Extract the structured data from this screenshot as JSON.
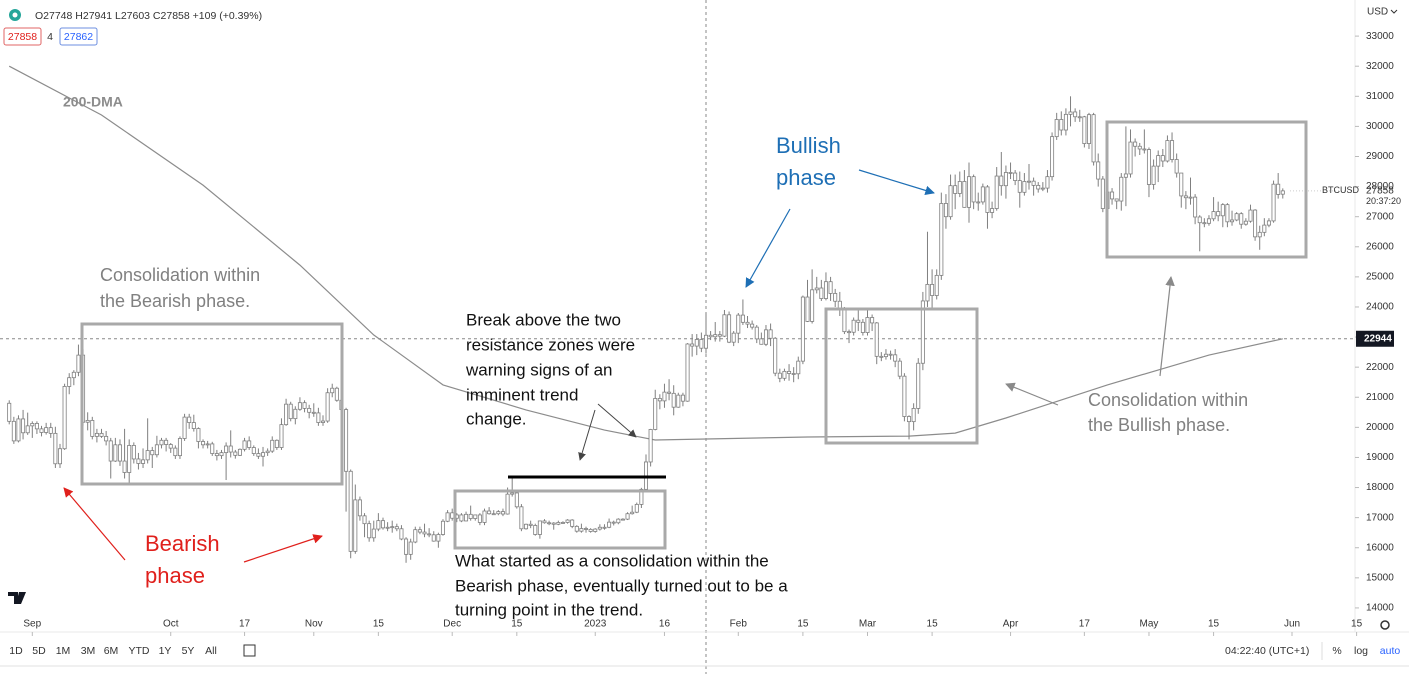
{
  "chart_data": {
    "type": "candlestick",
    "symbol": "BTCUSD",
    "currency": "USD",
    "legend_text": "O27748 H27941 L27603 C27858 +109 (+0.39%)",
    "bid": "27858",
    "spread": "4",
    "ask": "27862",
    "last_price": 27858,
    "countdown": "20:37:20",
    "crosshair_price": 22944,
    "candle_fill": "#ffffff",
    "candle_stroke": "#7f7f7f",
    "ylim": [
      13200,
      34200
    ],
    "yticks": [
      14000,
      15000,
      16000,
      17000,
      18000,
      19000,
      20000,
      21000,
      22000,
      23000,
      24000,
      25000,
      26000,
      27000,
      28000,
      29000,
      30000,
      31000,
      32000,
      33000
    ],
    "xlim": [
      -2,
      291
    ],
    "xticks": [
      {
        "value": 5,
        "label": "Sep"
      },
      {
        "value": 35,
        "label": "Oct"
      },
      {
        "value": 51,
        "label": "17"
      },
      {
        "value": 66,
        "label": "Nov"
      },
      {
        "value": 80,
        "label": "15"
      },
      {
        "value": 96,
        "label": "Dec"
      },
      {
        "value": 110,
        "label": "15"
      },
      {
        "value": 127,
        "label": "2023"
      },
      {
        "value": 142,
        "label": "16"
      },
      {
        "value": 158,
        "label": "Feb"
      },
      {
        "value": 172,
        "label": "15"
      },
      {
        "value": 186,
        "label": "Mar"
      },
      {
        "value": 200,
        "label": "15"
      },
      {
        "value": 217,
        "label": "Apr"
      },
      {
        "value": 233,
        "label": "17"
      },
      {
        "value": 247,
        "label": "May"
      },
      {
        "value": 261,
        "label": "15"
      },
      {
        "value": 278,
        "label": "Jun"
      },
      {
        "value": 292,
        "label": "15"
      }
    ],
    "grid": false,
    "open": [
      20800,
      20200,
      19550,
      20280,
      19820,
      20050,
      20130,
      19950,
      19830,
      19990,
      19800,
      18790,
      19290,
      21360,
      21650,
      21830,
      22400,
      20170,
      20230,
      19700,
      19800,
      19700,
      19550,
      18880,
      19420,
      18880,
      18500,
      19400,
      18950,
      18800,
      18920,
      19230,
      19090,
      19420,
      19570,
      19430,
      19310,
      19060,
      19630,
      20340,
      20160,
      19960,
      19530,
      19420,
      19450,
      19130,
      19060,
      19160,
      19380,
      19180,
      19070,
      19270,
      19550,
      19330,
      19130,
      19040,
      19160,
      19210,
      19570,
      19330,
      20090,
      20770,
      20290,
      20600,
      20820,
      20630,
      20500,
      20480,
      20160,
      20210,
      21150,
      21300,
      20900,
      20590,
      18540,
      15880,
      17590,
      17060,
      16800,
      16330,
      16620,
      16900,
      16660,
      16680,
      16700,
      16630,
      16290,
      15780,
      16190,
      16600,
      16520,
      16460,
      16430,
      16220,
      16440,
      16880,
      17160,
      16980,
      17090,
      16890,
      17110,
      16970,
      17090,
      16840,
      17220,
      17130,
      17130,
      17200,
      17120,
      17780,
      17820,
      17360,
      16630,
      16780,
      16740,
      16440,
      16890,
      16830,
      16820,
      16780,
      16840,
      16840,
      16920,
      16710,
      16550,
      16640,
      16610,
      16540,
      16620,
      16680,
      16680,
      16850,
      16830,
      16950,
      16950,
      17130,
      17180,
      17440,
      17940,
      18850,
      19930,
      20960,
      20880,
      21170,
      21130,
      20670,
      21070,
      20870,
      22770,
      22700,
      22920,
      22630,
      23060,
      23010,
      23080,
      23030,
      23740,
      22830,
      23130,
      23730,
      23490,
      23430,
      23330,
      22940,
      22760,
      23240,
      22960,
      21800,
      21630,
      21860,
      21790,
      21780,
      22200,
      24330,
      23520,
      24570,
      24630,
      24280,
      24840,
      24450,
      24190,
      23950,
      23180,
      23160,
      23560,
      23490,
      23150,
      23650,
      23470,
      22360,
      22350,
      22430,
      22410,
      22200,
      21700,
      20360,
      20190,
      20630,
      22130,
      24200,
      24750,
      24380,
      25050,
      27440,
      27000,
      28030,
      27770,
      28170,
      27310,
      28330,
      27490,
      27490,
      27990,
      27140,
      27270,
      28350,
      28030,
      28470,
      28450,
      28200,
      27810,
      28170,
      28180,
      28040,
      27920,
      27950,
      28330,
      29660,
      30230,
      29880,
      30400,
      30480,
      30320,
      30320,
      29430,
      30390,
      28820,
      28250,
      27270,
      27820,
      27590,
      27520,
      28310,
      28420,
      29480,
      29340,
      29250,
      29230,
      28070,
      28680,
      29030,
      28850,
      29530,
      28900,
      28450,
      27690,
      27630,
      27650,
      26990,
      26800,
      26780,
      26930,
      27170,
      27030,
      27400,
      26830,
      26890,
      27100,
      26750,
      26850,
      27220,
      26330,
      26480,
      26720,
      26860,
      28080,
      27748
    ],
    "high": [
      20900,
      20350,
      20400,
      20580,
      20490,
      20200,
      20200,
      20050,
      20150,
      20150,
      20020,
      19450,
      21450,
      21800,
      21900,
      22750,
      22600,
      20500,
      20350,
      19950,
      19950,
      19880,
      19650,
      19650,
      19600,
      19950,
      19600,
      19500,
      19150,
      19300,
      20300,
      19350,
      19720,
      19650,
      19650,
      19480,
      19400,
      19700,
      20450,
      20450,
      20420,
      20000,
      19600,
      19550,
      19520,
      19250,
      19250,
      19500,
      19900,
      19250,
      19300,
      19650,
      19700,
      19400,
      19300,
      19350,
      19300,
      19700,
      19600,
      20300,
      20950,
      20850,
      20700,
      21000,
      20900,
      20750,
      20800,
      20650,
      20400,
      21300,
      21450,
      21350,
      21000,
      20650,
      18600,
      18100,
      17700,
      17150,
      16900,
      16900,
      17150,
      17000,
      16850,
      16900,
      16800,
      16750,
      16350,
      16300,
      16700,
      16700,
      16800,
      16650,
      16550,
      16500,
      16950,
      17250,
      17300,
      17150,
      17150,
      17200,
      17400,
      17100,
      17150,
      17300,
      17350,
      17250,
      17250,
      17300,
      18000,
      18350,
      17850,
      17450,
      16800,
      16900,
      16800,
      16900,
      16950,
      16900,
      16850,
      16900,
      16880,
      16950,
      16950,
      16750,
      16800,
      16700,
      16650,
      16650,
      16780,
      16780,
      16970,
      16900,
      16980,
      16980,
      17180,
      17400,
      17500,
      17990,
      19100,
      19950,
      21250,
      21100,
      21450,
      21600,
      21400,
      21150,
      21150,
      22800,
      23100,
      23100,
      23150,
      23800,
      23200,
      23500,
      23200,
      23900,
      23850,
      23200,
      23800,
      24250,
      23700,
      23550,
      23400,
      23150,
      23400,
      23450,
      23000,
      21950,
      21950,
      22100,
      22000,
      22350,
      24380,
      24900,
      25250,
      25000,
      24900,
      25150,
      25000,
      24600,
      24500,
      24000,
      23250,
      23650,
      23900,
      23600,
      23900,
      23750,
      23500,
      22500,
      22600,
      22550,
      22600,
      22300,
      21800,
      20400,
      20800,
      22300,
      24500,
      26500,
      25250,
      25250,
      27800,
      27750,
      28400,
      28400,
      28500,
      28550,
      28800,
      28400,
      27800,
      28100,
      28050,
      27500,
      28650,
      29150,
      28700,
      28800,
      28550,
      28500,
      28450,
      28750,
      28300,
      28150,
      28150,
      28550,
      29800,
      30450,
      30500,
      30600,
      31000,
      30600,
      30550,
      30350,
      30450,
      30450,
      29100,
      28350,
      27900,
      27950,
      27600,
      28450,
      30000,
      29900,
      29600,
      29450,
      29900,
      29300,
      28900,
      29200,
      29250,
      29700,
      29800,
      29100,
      28450,
      27850,
      28300,
      27750,
      27050,
      26950,
      27050,
      27650,
      27500,
      27450,
      27450,
      27200,
      27150,
      27150,
      26950,
      27400,
      27250,
      26700,
      26950,
      26950,
      28200,
      28450,
      27941
    ],
    "low": [
      20100,
      19450,
      19500,
      19600,
      19750,
      19650,
      19780,
      19700,
      19760,
      19650,
      18650,
      18650,
      19250,
      21100,
      21400,
      21700,
      20050,
      19900,
      19600,
      19500,
      19650,
      19400,
      18300,
      18850,
      18720,
      18300,
      18150,
      18800,
      18600,
      18650,
      18800,
      18650,
      19000,
      19300,
      19200,
      19150,
      18950,
      18950,
      19550,
      19950,
      19860,
      19300,
      19300,
      19300,
      19050,
      18900,
      18950,
      18250,
      19000,
      18960,
      19050,
      19200,
      19250,
      19050,
      18950,
      18700,
      19050,
      19150,
      19250,
      19250,
      20050,
      20200,
      20100,
      20550,
      20500,
      20300,
      20350,
      20050,
      20050,
      20150,
      21000,
      20850,
      20400,
      17200,
      15650,
      15800,
      16900,
      16350,
      16200,
      16200,
      16550,
      16600,
      16550,
      16500,
      16550,
      16250,
      15500,
      15600,
      16150,
      16450,
      16350,
      16350,
      16200,
      16000,
      16400,
      16850,
      16900,
      16850,
      16850,
      16880,
      16900,
      16900,
      16750,
      16750,
      17100,
      17100,
      17080,
      17050,
      17100,
      17700,
      17300,
      16550,
      16600,
      16650,
      16400,
      16300,
      16800,
      16750,
      16600,
      16750,
      16800,
      16800,
      16650,
      16500,
      16500,
      16500,
      16500,
      16500,
      16570,
      16600,
      16650,
      16740,
      16780,
      16920,
      16920,
      17100,
      17150,
      17320,
      17900,
      18700,
      19900,
      20600,
      20650,
      20900,
      20400,
      20650,
      20700,
      20850,
      22350,
      22400,
      22500,
      22450,
      22900,
      22850,
      22850,
      23000,
      22800,
      22700,
      22800,
      23400,
      23300,
      23250,
      22800,
      22750,
      22700,
      22700,
      21700,
      21500,
      21550,
      21550,
      21500,
      21600,
      22100,
      23500,
      23450,
      24450,
      24200,
      24220,
      24200,
      24000,
      23700,
      23100,
      22800,
      23050,
      23200,
      23050,
      23050,
      23200,
      22100,
      22200,
      22250,
      22250,
      22000,
      21600,
      20200,
      19600,
      19900,
      20450,
      21900,
      24000,
      23900,
      24250,
      24900,
      26600,
      26900,
      27250,
      27650,
      27300,
      26800,
      27250,
      27200,
      27400,
      26600,
      26950,
      27200,
      27700,
      27600,
      28250,
      28050,
      27300,
      27700,
      27900,
      27700,
      27800,
      27850,
      27800,
      28200,
      29550,
      29700,
      29700,
      30000,
      30150,
      30150,
      29300,
      29250,
      28700,
      28000,
      27150,
      27100,
      27400,
      27250,
      27200,
      27350,
      28300,
      29000,
      29050,
      29100,
      27650,
      27900,
      28150,
      28650,
      28800,
      28800,
      28300,
      27300,
      27250,
      27400,
      26750,
      25850,
      26650,
      26700,
      26850,
      26850,
      26650,
      26650,
      26700,
      26850,
      26600,
      26700,
      26800,
      26200,
      25900,
      26350,
      26650,
      26800,
      27600,
      27603
    ],
    "close": [
      20200,
      19550,
      20280,
      19820,
      20050,
      20130,
      19950,
      19830,
      19990,
      19800,
      18790,
      19290,
      21360,
      21650,
      21830,
      22400,
      20170,
      20230,
      19700,
      19800,
      19700,
      19550,
      18880,
      19420,
      18880,
      18500,
      19400,
      18950,
      18800,
      18920,
      19230,
      19090,
      19420,
      19570,
      19430,
      19310,
      19060,
      19630,
      20340,
      20160,
      19960,
      19530,
      19420,
      19450,
      19130,
      19060,
      19160,
      19380,
      19180,
      19070,
      19270,
      19550,
      19330,
      19130,
      19040,
      19160,
      19210,
      19570,
      19330,
      20090,
      20770,
      20290,
      20600,
      20820,
      20630,
      20500,
      20480,
      20160,
      20210,
      21150,
      21300,
      20900,
      20590,
      18540,
      15880,
      17590,
      17060,
      16800,
      16330,
      16620,
      16900,
      16660,
      16680,
      16700,
      16630,
      16290,
      15780,
      16190,
      16600,
      16520,
      16460,
      16430,
      16220,
      16440,
      16880,
      17160,
      16980,
      17090,
      16890,
      17110,
      16970,
      17090,
      16840,
      17220,
      17130,
      17130,
      17200,
      17120,
      17780,
      17820,
      17360,
      16630,
      16780,
      16740,
      16440,
      16890,
      16830,
      16820,
      16780,
      16840,
      16840,
      16920,
      16710,
      16550,
      16640,
      16610,
      16540,
      16620,
      16680,
      16680,
      16850,
      16830,
      16950,
      16950,
      17130,
      17180,
      17440,
      17940,
      18850,
      19930,
      20960,
      20880,
      21170,
      21130,
      20670,
      21070,
      20870,
      22770,
      22700,
      22920,
      22630,
      23060,
      23010,
      23080,
      23030,
      23740,
      22830,
      23130,
      23730,
      23490,
      23430,
      23330,
      22940,
      22760,
      23240,
      22960,
      21800,
      21630,
      21860,
      21790,
      21780,
      22200,
      24330,
      23520,
      24570,
      24630,
      24280,
      24840,
      24450,
      24190,
      23950,
      23180,
      23160,
      23560,
      23490,
      23150,
      23650,
      23470,
      22360,
      22350,
      22430,
      22410,
      22200,
      21700,
      20360,
      20190,
      20630,
      22130,
      24200,
      24750,
      24380,
      25050,
      27440,
      27000,
      28030,
      27770,
      28170,
      27310,
      28330,
      27490,
      27490,
      27990,
      27140,
      27270,
      28350,
      28030,
      28470,
      28450,
      28200,
      27810,
      28170,
      28180,
      28040,
      27920,
      27950,
      28330,
      29660,
      30230,
      29880,
      30400,
      30480,
      30320,
      30320,
      29430,
      30390,
      28820,
      28250,
      27270,
      27820,
      27590,
      27520,
      28310,
      28420,
      29480,
      29340,
      29250,
      29230,
      28070,
      28680,
      29030,
      28850,
      29530,
      28900,
      28450,
      27690,
      27630,
      27650,
      26990,
      26800,
      26780,
      26930,
      27170,
      27030,
      27400,
      26830,
      26890,
      27100,
      26750,
      26850,
      27220,
      26330,
      26480,
      26720,
      26860,
      28080,
      27740,
      27858
    ],
    "ma": {
      "name": "200-DMA",
      "color": "#8c8c8c",
      "x": [
        0,
        20,
        42,
        63,
        79,
        94,
        112,
        129,
        140,
        173,
        195,
        205,
        216,
        238,
        260,
        276
      ],
      "values": [
        32000,
        30380,
        28050,
        25390,
        23070,
        21410,
        20580,
        19910,
        19580,
        19680,
        19710,
        19810,
        20310,
        21410,
        22400,
        22944
      ]
    },
    "annotations": [
      {
        "lines": [
          "Consolidation within",
          "the Bearish phase."
        ],
        "color": "#808080"
      },
      {
        "lines": [
          "Bearish",
          "phase"
        ],
        "color": "#e0201c"
      },
      {
        "lines": [
          "Bullish",
          "phase"
        ],
        "color": "#1e6fb5"
      },
      {
        "lines": [
          "Break above the two",
          "resistance zones were",
          "warning signs of an",
          "imminent trend",
          "change."
        ],
        "color": "#111111"
      },
      {
        "lines": [
          "What started as a consolidation within the",
          "Bearish phase, eventually turned out to be a",
          "turning point in the trend."
        ],
        "color": "#111111"
      },
      {
        "lines": [
          "Consolidation within",
          "the Bullish phase."
        ],
        "color": "#808080"
      }
    ]
  },
  "toolbar": {
    "ranges": [
      "1D",
      "5D",
      "1M",
      "3M",
      "6M",
      "YTD",
      "1Y",
      "5Y",
      "All"
    ],
    "clock": "04:22:40 (UTC+1)",
    "percent": "%",
    "log": "log",
    "auto": "auto"
  }
}
